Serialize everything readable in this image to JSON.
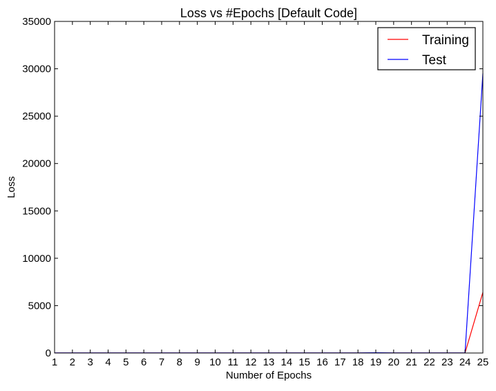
{
  "chart_data": {
    "type": "line",
    "title": "Loss vs #Epochs [Default Code]",
    "xlabel": "Number of Epochs",
    "ylabel": "Loss",
    "xlim": [
      1,
      25
    ],
    "ylim": [
      0,
      35000
    ],
    "x_ticks": [
      1,
      2,
      3,
      4,
      5,
      6,
      7,
      8,
      9,
      10,
      11,
      12,
      13,
      14,
      15,
      16,
      17,
      18,
      19,
      20,
      21,
      22,
      23,
      24,
      25
    ],
    "y_ticks": [
      0,
      5000,
      10000,
      15000,
      20000,
      25000,
      30000,
      35000
    ],
    "grid": false,
    "legend_position": "top-right",
    "x": [
      1,
      2,
      3,
      4,
      5,
      6,
      7,
      8,
      9,
      10,
      11,
      12,
      13,
      14,
      15,
      16,
      17,
      18,
      19,
      20,
      21,
      22,
      23,
      24,
      25
    ],
    "series": [
      {
        "name": "Training",
        "color": "#ff0000",
        "values": [
          5,
          5,
          5,
          5,
          5,
          5,
          5,
          5,
          5,
          5,
          5,
          5,
          5,
          5,
          5,
          5,
          5,
          5,
          5,
          5,
          5,
          5,
          5,
          5,
          6400
        ]
      },
      {
        "name": "Test",
        "color": "#0000ff",
        "values": [
          10,
          10,
          10,
          10,
          10,
          10,
          10,
          10,
          10,
          10,
          10,
          10,
          10,
          10,
          10,
          10,
          10,
          10,
          30,
          10,
          10,
          10,
          10,
          10,
          29500
        ]
      }
    ]
  }
}
